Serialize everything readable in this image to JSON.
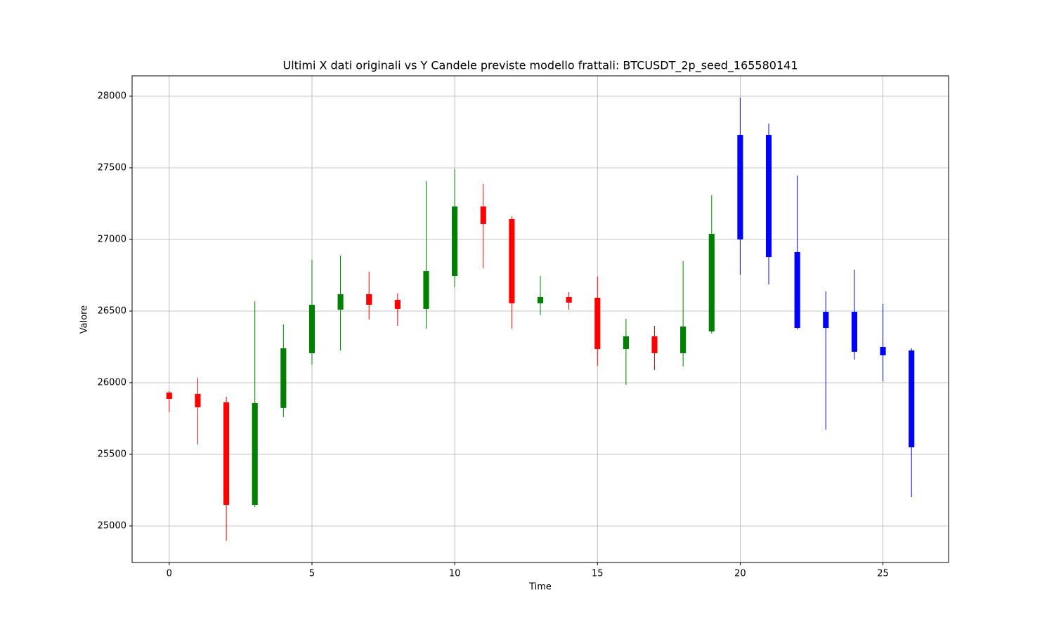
{
  "chart_data": {
    "type": "candlestick",
    "title": "Ultimi X dati originali vs Y Candele previste modello frattali: BTCUSDT_2p_seed_165580141",
    "xlabel": "Time",
    "ylabel": "Valore",
    "x": [
      0,
      1,
      2,
      3,
      4,
      5,
      6,
      7,
      8,
      9,
      10,
      11,
      12,
      13,
      14,
      15,
      16,
      17,
      18,
      19,
      20,
      21,
      22,
      23,
      24,
      25,
      26
    ],
    "open": [
      25931,
      25922,
      25863,
      25147,
      25824,
      26206,
      26510,
      26618,
      26578,
      26515,
      26745,
      27230,
      27142,
      26554,
      26598,
      26593,
      26235,
      26324,
      26206,
      26358,
      27000,
      27730,
      26912,
      26495,
      26495,
      26250,
      26225
    ],
    "high": [
      25941,
      26034,
      25902,
      26569,
      26407,
      26858,
      26887,
      26775,
      26623,
      27407,
      27490,
      27387,
      27162,
      26745,
      26632,
      26740,
      26446,
      26397,
      26848,
      27309,
      27990,
      27809,
      27446,
      26637,
      26789,
      26549,
      26240
    ],
    "low": [
      25794,
      25569,
      24897,
      25132,
      25760,
      26127,
      26225,
      26441,
      26397,
      26377,
      26667,
      26799,
      26377,
      26471,
      26510,
      26118,
      25985,
      26088,
      26113,
      26343,
      26755,
      26686,
      26373,
      25672,
      26162,
      26010,
      25201
    ],
    "close": [
      25887,
      25828,
      25147,
      25858,
      26240,
      26544,
      26618,
      26544,
      26515,
      26779,
      27230,
      27108,
      26554,
      26598,
      26559,
      26235,
      26324,
      26206,
      26392,
      27039,
      27730,
      26877,
      26382,
      26382,
      26216,
      26191,
      25549
    ],
    "colors": [
      "red",
      "red",
      "red",
      "green",
      "green",
      "green",
      "green",
      "red",
      "red",
      "green",
      "green",
      "red",
      "red",
      "green",
      "red",
      "red",
      "green",
      "red",
      "green",
      "green",
      "blue",
      "blue",
      "blue",
      "blue",
      "blue",
      "blue",
      "blue"
    ],
    "xlim": [
      -1.3,
      27.3
    ],
    "ylim": [
      24745,
      28142
    ],
    "xticks": [
      0,
      5,
      10,
      15,
      20,
      25
    ],
    "yticks": [
      25000,
      25500,
      26000,
      26500,
      27000,
      27500,
      28000
    ],
    "grid": true
  }
}
